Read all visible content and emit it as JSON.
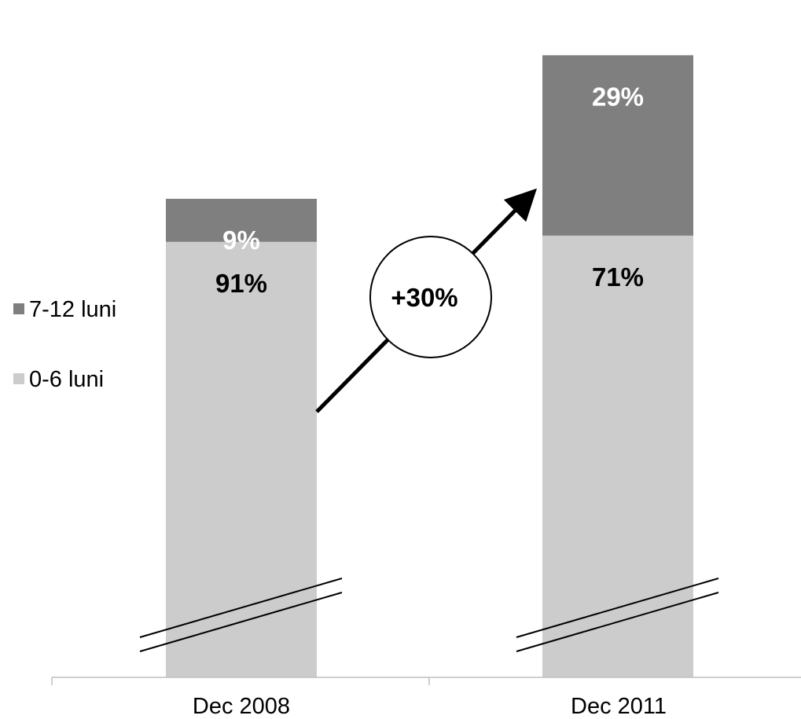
{
  "chart_data": {
    "type": "bar",
    "stacked": true,
    "normalized_percent": true,
    "categories": [
      "Dec 2008",
      "Dec 2011"
    ],
    "series": [
      {
        "name": "0-6 luni",
        "values": [
          91,
          71
        ],
        "labels": [
          "91%",
          "71%"
        ],
        "color": "#cccccc",
        "label_color": "#000000"
      },
      {
        "name": "7-12 luni",
        "values": [
          9,
          29
        ],
        "labels": [
          "9%",
          "29%"
        ],
        "color": "#7f7f7f",
        "label_color": "#ffffff"
      }
    ],
    "relative_totals": [
      100,
      130
    ],
    "annotation": {
      "text": "+30%",
      "type": "growth-arrow"
    },
    "axis_break": true,
    "legend": {
      "position": "left",
      "order": [
        "7-12 luni",
        "0-6 luni"
      ]
    },
    "grid": false,
    "title": "",
    "xlabel": "",
    "ylabel": ""
  }
}
